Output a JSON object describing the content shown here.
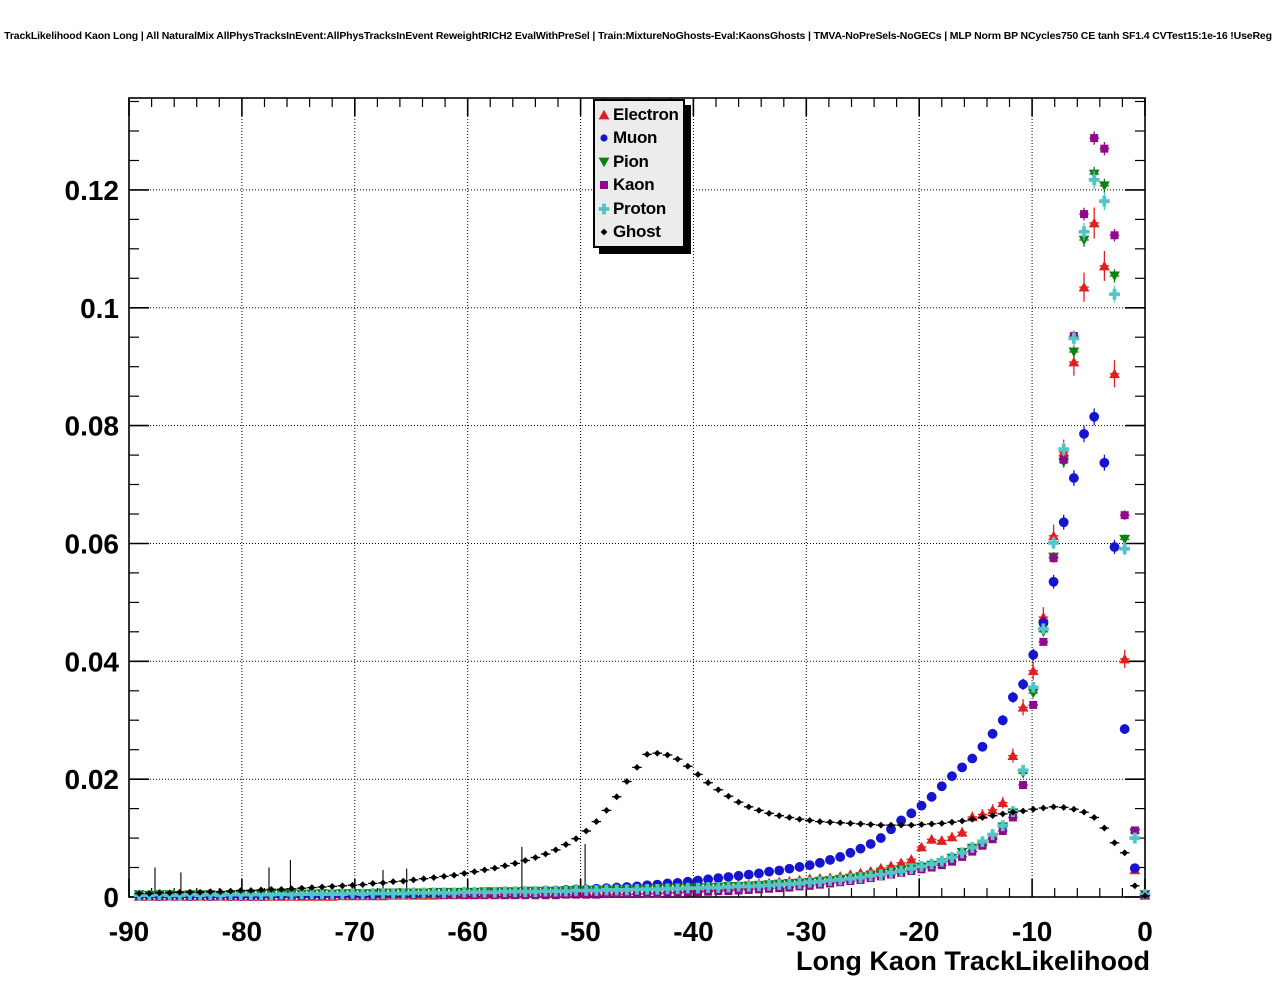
{
  "chart_data": {
    "type": "scatter",
    "title": "TrackLikelihood Kaon Long | All NaturalMix AllPhysTracksInEvent:AllPhysTracksInEvent ReweightRICH2 EvalWithPreSel | Train:MixtureNoGhosts-Eval:KaonsGhosts | TMVA-NoPreSels-NoGECs | MLP Norm BP NCycles750 CE tanh SF1.4 CVTest15:1e-16 !UseReg",
    "xlabel": "Long Kaon TrackLikelihood",
    "ylabel": "",
    "xlim": [
      -90,
      0
    ],
    "ylim": [
      0,
      0.1356
    ],
    "grid": true,
    "grid_style": "dotted",
    "x_tick_labels": [
      "-90",
      "-80",
      "-70",
      "-60",
      "-50",
      "-40",
      "-30",
      "-20",
      "-10",
      "0"
    ],
    "y_tick_labels": [
      "0",
      "0.02",
      "0.04",
      "0.06",
      "0.08",
      "0.1",
      "0.12"
    ],
    "x_major_step": 10,
    "x_minor_step": 2,
    "y_major_step": 0.02,
    "y_minor_step": 0.005,
    "legend_position": "top-center",
    "x_start": -89.1,
    "dx": 0.9,
    "series": [
      {
        "name": "Electron",
        "id": "electron",
        "color": "#e02020",
        "marker": "triangle-up",
        "err_scale": 6e-05,
        "min_visible": 0,
        "values": [
          0.0001,
          0.0001,
          0.0001,
          0.0001,
          0.0001,
          0.0001,
          0.0001,
          0.0001,
          0.0001,
          0.0001,
          0.0001,
          0.0001,
          0.0001,
          0.0001,
          0.0001,
          0.0001,
          0.0001,
          0.0001,
          0.0001,
          0.0001,
          0.0002,
          0.0002,
          0.0002,
          0.0002,
          0.0002,
          0.0003,
          0.0003,
          0.0003,
          0.0003,
          0.0003,
          0.0004,
          0.0004,
          0.0004,
          0.0004,
          0.0005,
          0.0005,
          0.0005,
          0.0005,
          0.0006,
          0.0006,
          0.0006,
          0.0007,
          0.0007,
          0.0008,
          0.0008,
          0.0009,
          0.0009,
          0.001,
          0.001,
          0.0011,
          0.0012,
          0.0012,
          0.0013,
          0.0014,
          0.0015,
          0.0016,
          0.0017,
          0.0018,
          0.0019,
          0.002,
          0.0021,
          0.0023,
          0.0024,
          0.0026,
          0.0027,
          0.0029,
          0.0031,
          0.0032,
          0.0033,
          0.0035,
          0.0038,
          0.0041,
          0.0044,
          0.0049,
          0.0053,
          0.0058,
          0.0064,
          0.0085,
          0.0098,
          0.0096,
          0.0102,
          0.011,
          0.0136,
          0.014,
          0.0148,
          0.016,
          0.024,
          0.0322,
          0.0384,
          0.0475,
          0.0613,
          0.0755,
          0.0908,
          0.1035,
          0.1144,
          0.1071,
          0.0888,
          0.0404,
          0.0046,
          0.0003
        ]
      },
      {
        "name": "Muon",
        "id": "muon",
        "color": "#1515d0",
        "marker": "circle",
        "err_scale": 2.5e-05,
        "min_visible": 0,
        "values": [
          0.0002,
          0.0002,
          0.0002,
          0.0002,
          0.0002,
          0.0002,
          0.0002,
          0.0002,
          0.0002,
          0.0002,
          0.0002,
          0.0002,
          0.0002,
          0.0003,
          0.0003,
          0.0003,
          0.0003,
          0.0003,
          0.0003,
          0.0004,
          0.0004,
          0.0004,
          0.0004,
          0.0004,
          0.0005,
          0.0005,
          0.0005,
          0.0005,
          0.0006,
          0.0006,
          0.0006,
          0.0007,
          0.0007,
          0.0007,
          0.0008,
          0.0008,
          0.0009,
          0.0009,
          0.001,
          0.001,
          0.0011,
          0.0011,
          0.0012,
          0.0013,
          0.0013,
          0.0014,
          0.0015,
          0.0016,
          0.0017,
          0.0018,
          0.002,
          0.0021,
          0.0023,
          0.0024,
          0.0026,
          0.0028,
          0.003,
          0.0032,
          0.0034,
          0.0036,
          0.0038,
          0.004,
          0.0043,
          0.0045,
          0.0048,
          0.0051,
          0.0054,
          0.0058,
          0.0063,
          0.0068,
          0.0075,
          0.0082,
          0.009,
          0.01,
          0.0115,
          0.013,
          0.0142,
          0.0155,
          0.017,
          0.0188,
          0.0205,
          0.022,
          0.0235,
          0.0255,
          0.0277,
          0.03,
          0.0339,
          0.0361,
          0.0411,
          0.0465,
          0.0535,
          0.0636,
          0.0711,
          0.0786,
          0.0815,
          0.0737,
          0.0594,
          0.0285,
          0.0049,
          0.0003
        ]
      },
      {
        "name": "Pion",
        "id": "pion",
        "color": "#0e800e",
        "marker": "triangle-down",
        "err_scale": 1.2e-05,
        "min_visible": 0,
        "values": [
          0.0004,
          0.0003,
          0.0004,
          0.0004,
          0.0003,
          0.0004,
          0.0004,
          0.0004,
          0.0003,
          0.0004,
          0.0004,
          0.0005,
          0.0004,
          0.0005,
          0.0005,
          0.0005,
          0.0005,
          0.0005,
          0.0006,
          0.0005,
          0.0006,
          0.0006,
          0.0006,
          0.0006,
          0.0007,
          0.0007,
          0.0007,
          0.0007,
          0.0007,
          0.0008,
          0.0008,
          0.0008,
          0.0008,
          0.0008,
          0.0009,
          0.0009,
          0.0009,
          0.0009,
          0.001,
          0.001,
          0.001,
          0.001,
          0.0011,
          0.0011,
          0.0011,
          0.0012,
          0.0012,
          0.0012,
          0.0013,
          0.0013,
          0.0013,
          0.0014,
          0.0014,
          0.0015,
          0.0015,
          0.0016,
          0.0016,
          0.0017,
          0.0018,
          0.0018,
          0.0019,
          0.002,
          0.0021,
          0.0022,
          0.0023,
          0.0024,
          0.0025,
          0.0027,
          0.0028,
          0.003,
          0.0032,
          0.0034,
          0.0037,
          0.004,
          0.0043,
          0.0046,
          0.0048,
          0.0051,
          0.0054,
          0.0058,
          0.0066,
          0.0076,
          0.0083,
          0.009,
          0.01,
          0.0119,
          0.0143,
          0.021,
          0.0346,
          0.045,
          0.0577,
          0.0738,
          0.0925,
          0.1115,
          0.1227,
          0.1207,
          0.1054,
          0.0607,
          0.0109,
          0.0004
        ]
      },
      {
        "name": "Kaon",
        "id": "kaon",
        "color": "#90098c",
        "marker": "square",
        "err_scale": 1e-05,
        "min_visible": 0.00025,
        "values": [
          0.0002,
          0.0002,
          0.0002,
          0.0002,
          0.0002,
          0.0002,
          0.0002,
          0.0002,
          0.0002,
          0.0002,
          0.0002,
          0.0002,
          0.0002,
          0.0002,
          0.0002,
          0.0002,
          0.0002,
          0.0002,
          0.0002,
          0.0002,
          0.0002,
          0.0002,
          0.0002,
          0.0002,
          0.0002,
          0.0002,
          0.0002,
          0.0002,
          0.0002,
          0.0002,
          0.0003,
          0.0003,
          0.0003,
          0.0003,
          0.0003,
          0.0003,
          0.0003,
          0.0003,
          0.0003,
          0.0003,
          0.0003,
          0.0003,
          0.0004,
          0.0004,
          0.0004,
          0.0004,
          0.0005,
          0.0005,
          0.0005,
          0.0005,
          0.0006,
          0.0006,
          0.0007,
          0.0007,
          0.0008,
          0.0008,
          0.0009,
          0.001,
          0.001,
          0.0011,
          0.0012,
          0.0013,
          0.0014,
          0.0015,
          0.0016,
          0.0018,
          0.0019,
          0.0021,
          0.0023,
          0.0025,
          0.0027,
          0.0029,
          0.0032,
          0.0035,
          0.0038,
          0.0041,
          0.0044,
          0.0047,
          0.005,
          0.0054,
          0.006,
          0.0068,
          0.0077,
          0.0087,
          0.0098,
          0.0112,
          0.0135,
          0.019,
          0.0326,
          0.0433,
          0.0575,
          0.0742,
          0.0952,
          0.1159,
          0.1288,
          0.127,
          0.1123,
          0.0648,
          0.0113,
          0.0004
        ]
      },
      {
        "name": "Proton",
        "id": "proton",
        "color": "#55c4c8",
        "marker": "plus",
        "err_scale": 2e-05,
        "min_visible": 0,
        "values": [
          0.0003,
          0.0003,
          0.0004,
          0.0003,
          0.0003,
          0.0004,
          0.0003,
          0.0004,
          0.0003,
          0.0004,
          0.0004,
          0.0004,
          0.0004,
          0.0004,
          0.0005,
          0.0004,
          0.0005,
          0.0005,
          0.0005,
          0.0005,
          0.0005,
          0.0006,
          0.0005,
          0.0006,
          0.0006,
          0.0006,
          0.0006,
          0.0007,
          0.0007,
          0.0007,
          0.0007,
          0.0007,
          0.0008,
          0.0008,
          0.0008,
          0.0008,
          0.0009,
          0.0009,
          0.0009,
          0.0009,
          0.001,
          0.001,
          0.001,
          0.0011,
          0.0011,
          0.0011,
          0.0012,
          0.0012,
          0.0012,
          0.0013,
          0.0013,
          0.0013,
          0.0014,
          0.0014,
          0.0015,
          0.0015,
          0.0016,
          0.0016,
          0.0017,
          0.0018,
          0.0018,
          0.0019,
          0.002,
          0.0021,
          0.0022,
          0.0023,
          0.0025,
          0.0026,
          0.0028,
          0.0029,
          0.0031,
          0.0033,
          0.0036,
          0.0038,
          0.0041,
          0.0044,
          0.0048,
          0.0052,
          0.0056,
          0.0061,
          0.0067,
          0.0075,
          0.0084,
          0.0094,
          0.0106,
          0.0121,
          0.0145,
          0.0215,
          0.0356,
          0.0455,
          0.0601,
          0.076,
          0.0948,
          0.1129,
          0.1217,
          0.1181,
          0.1023,
          0.0591,
          0.01,
          0.0004
        ]
      },
      {
        "name": "Ghost",
        "id": "ghost",
        "color": "#000000",
        "marker": "diamond",
        "err_scale": 1.5e-06,
        "min_visible": 0,
        "values": [
          0.0006,
          0.0006,
          0.0007,
          0.0007,
          0.0008,
          0.0008,
          0.0008,
          0.0009,
          0.0009,
          0.001,
          0.0011,
          0.0011,
          0.0012,
          0.0013,
          0.0013,
          0.0014,
          0.0015,
          0.0016,
          0.0017,
          0.0018,
          0.0019,
          0.002,
          0.0021,
          0.0023,
          0.0024,
          0.0026,
          0.0027,
          0.0029,
          0.0031,
          0.0033,
          0.0035,
          0.0037,
          0.004,
          0.0043,
          0.0046,
          0.0049,
          0.0053,
          0.0057,
          0.0062,
          0.0067,
          0.0073,
          0.008,
          0.0089,
          0.0099,
          0.0112,
          0.0128,
          0.0147,
          0.017,
          0.0196,
          0.022,
          0.0242,
          0.0244,
          0.0241,
          0.0234,
          0.0222,
          0.0208,
          0.0194,
          0.0182,
          0.0171,
          0.0161,
          0.0153,
          0.0147,
          0.0142,
          0.0138,
          0.0135,
          0.0132,
          0.013,
          0.0128,
          0.0127,
          0.0126,
          0.0125,
          0.0124,
          0.0123,
          0.0122,
          0.0122,
          0.0122,
          0.0122,
          0.0123,
          0.0124,
          0.0125,
          0.0127,
          0.0129,
          0.0132,
          0.0135,
          0.0138,
          0.0141,
          0.0144,
          0.0146,
          0.0149,
          0.0151,
          0.0153,
          0.0152,
          0.0149,
          0.0144,
          0.0135,
          0.0117,
          0.0092,
          0.0075,
          0.0019,
          0.0002
        ]
      }
    ],
    "error_spikes": [
      {
        "x": -87.7,
        "top": 0.005
      },
      {
        "x": -85.4,
        "top": 0.0042
      },
      {
        "x": -77.6,
        "top": 0.005
      },
      {
        "x": -75.7,
        "top": 0.0063
      },
      {
        "x": -67.5,
        "top": 0.0046
      },
      {
        "x": -65.4,
        "top": 0.0048
      },
      {
        "x": -55.2,
        "top": 0.0085
      },
      {
        "x": -49.6,
        "top": 0.009
      }
    ]
  }
}
